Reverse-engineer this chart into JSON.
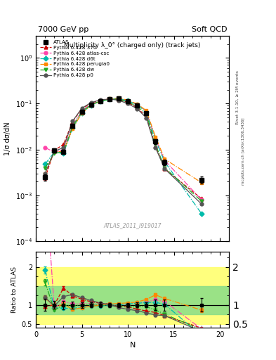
{
  "title_top": "7000 GeV pp",
  "title_right": "Soft QCD",
  "title_main": "Multiplicity λ_0° (charged only) (track jets)",
  "ylabel_main": "1/σ dσ/dN",
  "ylabel_ratio": "Ratio to ATLAS",
  "xlabel": "N",
  "watermark": "ATLAS_2011_I919017",
  "right_label": "Rivet 3.1.10, ≥ 2M events",
  "right_label2": "mcplots.cern.ch [arXiv:1306.3436]",
  "atlas_x": [
    1,
    2,
    3,
    4,
    5,
    6,
    7,
    8,
    9,
    10,
    11,
    12,
    13,
    14,
    18
  ],
  "atlas_y": [
    0.0025,
    0.0095,
    0.009,
    0.033,
    0.067,
    0.095,
    0.115,
    0.125,
    0.128,
    0.113,
    0.092,
    0.062,
    0.015,
    0.0053,
    0.0022
  ],
  "atlas_yerr": [
    0.0004,
    0.001,
    0.001,
    0.003,
    0.005,
    0.006,
    0.007,
    0.007,
    0.007,
    0.006,
    0.006,
    0.004,
    0.002,
    0.0008,
    0.0004
  ],
  "p370_x": [
    1,
    2,
    3,
    4,
    5,
    6,
    7,
    8,
    9,
    10,
    11,
    12,
    13,
    14,
    18
  ],
  "p370_y": [
    0.0024,
    0.0095,
    0.013,
    0.041,
    0.077,
    0.103,
    0.12,
    0.128,
    0.122,
    0.107,
    0.082,
    0.052,
    0.012,
    0.0038,
    0.00085
  ],
  "p370_color": "#cc0000",
  "p370_label": "Pythia 6.428 370",
  "p370_marker": "^",
  "p370_ls": "--",
  "patlas_x": [
    1,
    2,
    3,
    4,
    5,
    6,
    7,
    8,
    9,
    10,
    11,
    12,
    13,
    14,
    18
  ],
  "patlas_y": [
    0.011,
    0.0088,
    0.0098,
    0.034,
    0.069,
    0.099,
    0.116,
    0.124,
    0.128,
    0.114,
    0.096,
    0.067,
    0.017,
    0.0058,
    0.0008
  ],
  "patlas_color": "#ff44aa",
  "patlas_label": "Pythia 6.428 atlas-csc",
  "patlas_marker": "o",
  "patlas_ls": "-.",
  "pd6t_x": [
    1,
    2,
    3,
    4,
    5,
    6,
    7,
    8,
    9,
    10,
    11,
    12,
    13,
    14,
    18
  ],
  "pd6t_y": [
    0.0048,
    0.0088,
    0.0082,
    0.03,
    0.063,
    0.093,
    0.113,
    0.124,
    0.129,
    0.116,
    0.096,
    0.066,
    0.016,
    0.0054,
    0.0004
  ],
  "pd6t_color": "#00bbaa",
  "pd6t_label": "Pythia 6.428 d6t",
  "pd6t_marker": "D",
  "pd6t_ls": "-.",
  "pperugia_x": [
    1,
    2,
    3,
    4,
    5,
    6,
    7,
    8,
    9,
    10,
    11,
    12,
    13,
    14,
    18
  ],
  "pperugia_y": [
    0.003,
    0.0088,
    0.0092,
    0.029,
    0.062,
    0.092,
    0.114,
    0.128,
    0.133,
    0.119,
    0.099,
    0.071,
    0.019,
    0.0062,
    0.0019
  ],
  "pperugia_color": "#ff8800",
  "pperugia_label": "Pythia 6.428 perugia0",
  "pperugia_marker": "s",
  "pperugia_ls": "-.",
  "pdw_x": [
    1,
    2,
    3,
    4,
    5,
    6,
    7,
    8,
    9,
    10,
    11,
    12,
    13,
    14,
    18
  ],
  "pdw_y": [
    0.004,
    0.0082,
    0.0089,
    0.032,
    0.067,
    0.096,
    0.114,
    0.124,
    0.124,
    0.109,
    0.088,
    0.059,
    0.013,
    0.004,
    0.00075
  ],
  "pdw_color": "#22aa22",
  "pdw_label": "Pythia 6.428 dw",
  "pdw_marker": "v",
  "pdw_ls": "-.",
  "pp0_x": [
    1,
    2,
    3,
    4,
    5,
    6,
    7,
    8,
    9,
    10,
    11,
    12,
    13,
    14,
    18
  ],
  "pp0_y": [
    0.003,
    0.0092,
    0.011,
    0.042,
    0.08,
    0.106,
    0.121,
    0.126,
    0.119,
    0.1,
    0.078,
    0.049,
    0.011,
    0.0038,
    0.00065
  ],
  "pp0_color": "#555555",
  "pp0_label": "Pythia 6.428 p0",
  "pp0_marker": "o",
  "pp0_ls": "-",
  "ylim_main": [
    0.0001,
    3.0
  ],
  "ylim_ratio": [
    0.4,
    2.4
  ],
  "xlim": [
    0,
    21
  ],
  "band_yellow": [
    0.5,
    2.0
  ],
  "band_green": [
    0.75,
    1.5
  ]
}
